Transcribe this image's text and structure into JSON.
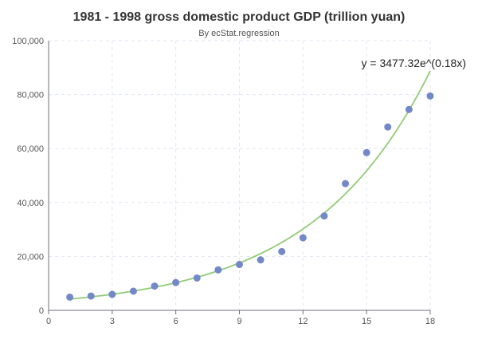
{
  "chart_data": {
    "type": "scatter",
    "title": "1981 - 1998 gross domestic product GDP (trillion yuan)",
    "subtitle": "By ecStat.regression",
    "xlabel": "",
    "ylabel": "",
    "xlim": [
      0,
      18
    ],
    "ylim": [
      0,
      100000
    ],
    "x_ticks": [
      "0",
      "3",
      "6",
      "9",
      "12",
      "15",
      "18"
    ],
    "y_ticks": [
      "0",
      "20,000",
      "40,000",
      "60,000",
      "80,000",
      "100,000"
    ],
    "grid": true,
    "x": [
      1,
      2,
      3,
      4,
      5,
      6,
      7,
      8,
      9,
      10,
      11,
      12,
      13,
      14,
      15,
      16,
      17,
      18
    ],
    "values": [
      4900,
      5300,
      5900,
      7100,
      9000,
      10300,
      12000,
      15000,
      17000,
      18700,
      21800,
      26900,
      35000,
      47000,
      58500,
      68000,
      74500,
      79500
    ],
    "regression": {
      "equation": "y = 3477.32e^(0.18x)",
      "a": 3477.32,
      "b": 0.18,
      "color": "#91cc75"
    },
    "point_color": "#7388c9"
  }
}
